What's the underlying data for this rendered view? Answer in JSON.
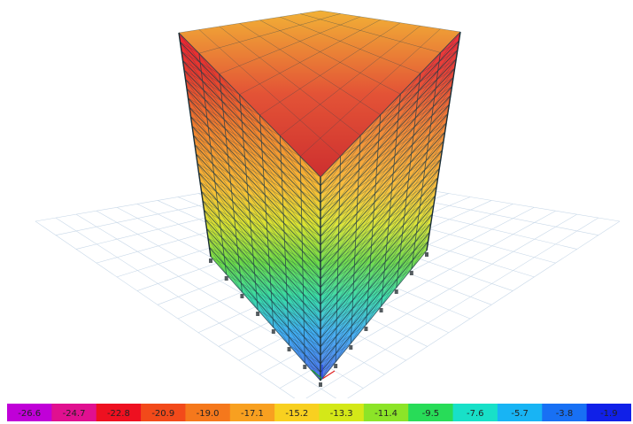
{
  "legend": {
    "labels": [
      "-26.6",
      "-24.7",
      "-22.8",
      "-20.9",
      "-19.0",
      "-17.1",
      "-15.2",
      "-13.3",
      "-11.4",
      "-9.5",
      "-7.6",
      "-5.7",
      "-3.8",
      "-1.9"
    ],
    "colors": [
      "#c000d8",
      "#e01090",
      "#ee1020",
      "#f24a1a",
      "#f5781c",
      "#f8a020",
      "#f8d020",
      "#d4e818",
      "#8ce428",
      "#28dc58",
      "#18e0c8",
      "#18b4f4",
      "#1870f4",
      "#1020e8"
    ]
  },
  "model": {
    "stories": 24,
    "bays_x": 7,
    "bays_y": 7
  }
}
